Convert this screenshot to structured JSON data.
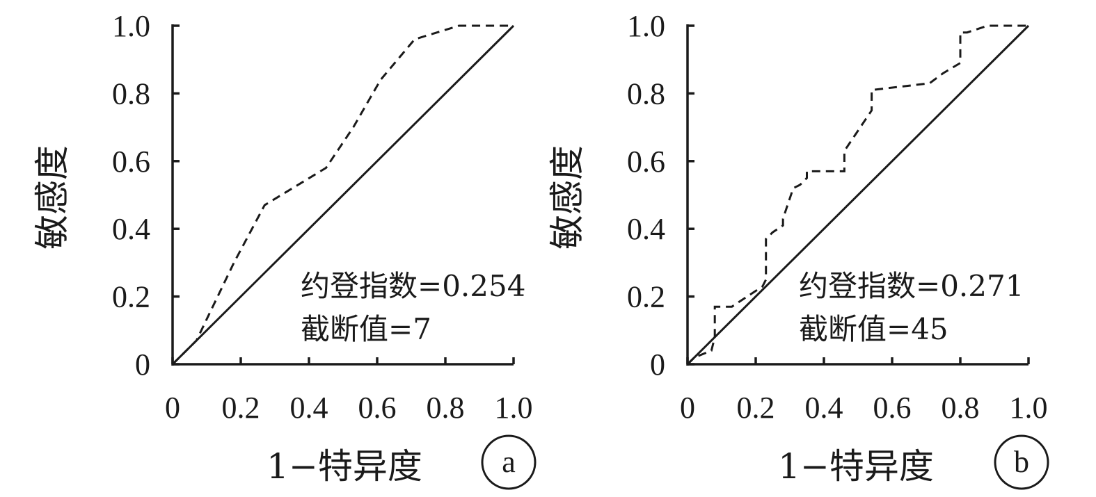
{
  "colors": {
    "line": "#1a1a1a",
    "background": "#ffffff"
  },
  "chart_data": [
    {
      "type": "line",
      "panel_label": "a",
      "xlabel": "1−特异度",
      "ylabel": "敏感度",
      "xlim": [
        0,
        1
      ],
      "ylim": [
        0,
        1
      ],
      "x_ticks": [
        "0",
        "0.2",
        "0.4",
        "0.6",
        "0.8",
        "1.0"
      ],
      "y_ticks": [
        "0",
        "0.2",
        "0.4",
        "0.6",
        "0.8",
        "1.0"
      ],
      "grid": false,
      "annotations": [
        "约登指数=0.254",
        "截断值=7"
      ],
      "series": [
        {
          "style": "dashed",
          "x": [
            0,
            0.07,
            0.18,
            0.27,
            0.45,
            0.53,
            0.61,
            0.71,
            0.84,
            1.0
          ],
          "y": [
            0,
            0.07,
            0.3,
            0.47,
            0.58,
            0.7,
            0.84,
            0.96,
            1.0,
            1.0
          ]
        },
        {
          "style": "solid",
          "x": [
            0,
            1
          ],
          "y": [
            0,
            1
          ]
        }
      ]
    },
    {
      "type": "line",
      "panel_label": "b",
      "xlabel": "1−特异度",
      "ylabel": "敏感度",
      "xlim": [
        0,
        1
      ],
      "ylim": [
        0,
        1
      ],
      "x_ticks": [
        "0",
        "0.2",
        "0.4",
        "0.6",
        "0.8",
        "1.0"
      ],
      "y_ticks": [
        "0",
        "0.2",
        "0.4",
        "0.6",
        "0.8",
        "1.0"
      ],
      "grid": false,
      "annotations": [
        "约登指数=0.271",
        "截断值=45"
      ],
      "series": [
        {
          "style": "dashed",
          "x": [
            0,
            0.02,
            0.07,
            0.08,
            0.08,
            0.13,
            0.22,
            0.23,
            0.23,
            0.25,
            0.28,
            0.28,
            0.31,
            0.33,
            0.35,
            0.35,
            0.46,
            0.46,
            0.48,
            0.54,
            0.54,
            0.71,
            0.75,
            0.8,
            0.8,
            0.82,
            0.88,
            1.0
          ],
          "y": [
            0,
            0.02,
            0.04,
            0.08,
            0.17,
            0.17,
            0.23,
            0.25,
            0.37,
            0.39,
            0.41,
            0.43,
            0.52,
            0.53,
            0.55,
            0.57,
            0.57,
            0.63,
            0.66,
            0.75,
            0.81,
            0.83,
            0.86,
            0.89,
            0.98,
            0.98,
            1.0,
            1.0
          ]
        },
        {
          "style": "solid",
          "x": [
            0,
            1
          ],
          "y": [
            0,
            1
          ]
        }
      ]
    }
  ]
}
